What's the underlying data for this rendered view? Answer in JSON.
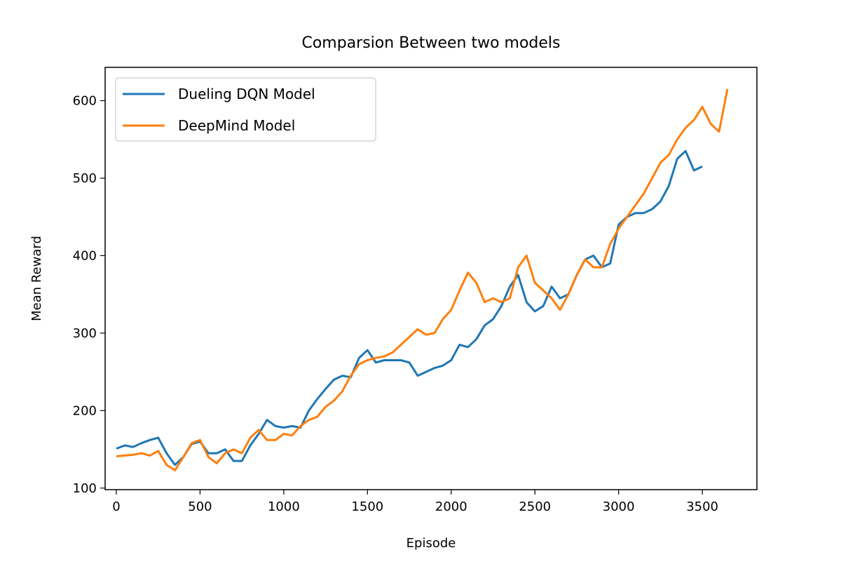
{
  "chart_data": {
    "type": "line",
    "title": "Comparsion Between two models",
    "x_label": "Episode",
    "y_label": "Mean Reward",
    "xlim": [
      -67,
      3826
    ],
    "ylim": [
      98,
      643
    ],
    "xticks": [
      0,
      500,
      1000,
      1500,
      2000,
      2500,
      3000,
      3500
    ],
    "yticks": [
      100,
      200,
      300,
      400,
      500,
      600
    ],
    "legend": "upper left",
    "grid": false,
    "series": [
      {
        "name": "Dueling DQN Model",
        "color": "#1f77b4",
        "x": [
          0,
          50,
          100,
          150,
          200,
          250,
          300,
          350,
          400,
          450,
          500,
          550,
          600,
          650,
          700,
          750,
          800,
          850,
          900,
          950,
          1000,
          1050,
          1100,
          1150,
          1200,
          1250,
          1300,
          1350,
          1400,
          1450,
          1500,
          1550,
          1600,
          1650,
          1700,
          1750,
          1800,
          1850,
          1900,
          1950,
          2000,
          2050,
          2100,
          2150,
          2200,
          2250,
          2300,
          2350,
          2400,
          2450,
          2500,
          2550,
          2600,
          2650,
          2700,
          2750,
          2800,
          2850,
          2900,
          2950,
          3000,
          3050,
          3100,
          3150,
          3200,
          3250,
          3300,
          3350,
          3400,
          3450,
          3500
        ],
        "values": [
          151,
          155,
          153,
          158,
          162,
          165,
          145,
          130,
          140,
          157,
          160,
          145,
          145,
          150,
          135,
          135,
          155,
          170,
          188,
          180,
          178,
          180,
          178,
          200,
          215,
          228,
          240,
          245,
          243,
          268,
          278,
          262,
          265,
          265,
          265,
          262,
          245,
          250,
          255,
          258,
          265,
          285,
          282,
          292,
          310,
          318,
          335,
          360,
          375,
          340,
          328,
          335,
          360,
          345,
          350,
          375,
          395,
          400,
          385,
          390,
          440,
          450,
          455,
          455,
          460,
          470,
          490,
          525,
          535,
          510,
          515
        ]
      },
      {
        "name": "DeepMind Model",
        "color": "#ff7f0e",
        "x": [
          0,
          50,
          100,
          150,
          200,
          250,
          300,
          350,
          400,
          450,
          500,
          550,
          600,
          650,
          700,
          750,
          800,
          850,
          900,
          950,
          1000,
          1050,
          1100,
          1150,
          1200,
          1250,
          1300,
          1350,
          1400,
          1450,
          1500,
          1550,
          1600,
          1650,
          1700,
          1750,
          1800,
          1850,
          1900,
          1950,
          2000,
          2050,
          2100,
          2150,
          2200,
          2250,
          2300,
          2350,
          2400,
          2450,
          2500,
          2550,
          2600,
          2650,
          2700,
          2750,
          2800,
          2850,
          2900,
          2950,
          3000,
          3050,
          3100,
          3150,
          3200,
          3250,
          3300,
          3350,
          3400,
          3450,
          3500,
          3550,
          3600,
          3650
        ],
        "values": [
          141,
          142,
          143,
          145,
          142,
          148,
          130,
          123,
          140,
          158,
          162,
          140,
          132,
          145,
          150,
          145,
          165,
          175,
          162,
          162,
          170,
          168,
          180,
          188,
          192,
          205,
          213,
          225,
          245,
          260,
          265,
          268,
          270,
          275,
          285,
          295,
          305,
          298,
          300,
          318,
          330,
          355,
          378,
          365,
          340,
          345,
          340,
          345,
          385,
          400,
          365,
          355,
          345,
          330,
          350,
          375,
          395,
          385,
          385,
          415,
          435,
          450,
          465,
          480,
          500,
          520,
          530,
          550,
          565,
          575,
          592,
          570,
          560,
          615
        ]
      }
    ]
  }
}
